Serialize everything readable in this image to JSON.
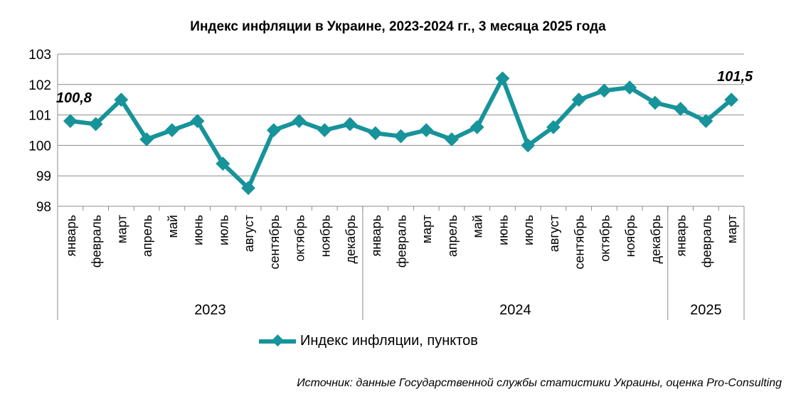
{
  "chart_data": {
    "type": "line",
    "title": "Индекс инфляции в Украине, 2023-2024 гг., 3 месяца 2025 года",
    "ylim": [
      98,
      103
    ],
    "yticks": [
      "98",
      "99",
      "100",
      "101",
      "102",
      "103"
    ],
    "grid": true,
    "categories": [
      "январь",
      "февраль",
      "март",
      "апрель",
      "май",
      "июнь",
      "июль",
      "август",
      "сентябрь",
      "октябрь",
      "ноябрь",
      "декабрь",
      "январь",
      "февраль",
      "март",
      "апрель",
      "май",
      "июнь",
      "июль",
      "август",
      "сентябрь",
      "октябрь",
      "ноябрь",
      "декабрь",
      "январь",
      "февраль",
      "март"
    ],
    "groups": [
      {
        "label": "2023",
        "count": 12
      },
      {
        "label": "2024",
        "count": 12
      },
      {
        "label": "2025",
        "count": 3
      }
    ],
    "series": [
      {
        "name": "Индекс инфляции, пунктов",
        "color": "#17939A",
        "values": [
          100.8,
          100.7,
          101.5,
          100.2,
          100.5,
          100.8,
          99.4,
          98.6,
          100.5,
          100.8,
          100.5,
          100.7,
          100.4,
          100.3,
          100.5,
          100.2,
          100.6,
          102.2,
          100.0,
          100.6,
          101.5,
          101.8,
          101.9,
          101.4,
          101.2,
          100.8,
          101.5
        ]
      }
    ],
    "annotations": [
      {
        "index": 0,
        "text": "100,8"
      },
      {
        "index": 26,
        "text": "101,5"
      }
    ],
    "legend_position": "bottom"
  },
  "source_note": "Источник: данные Государственной службы статистики Украины, оценка Pro-Consulting"
}
